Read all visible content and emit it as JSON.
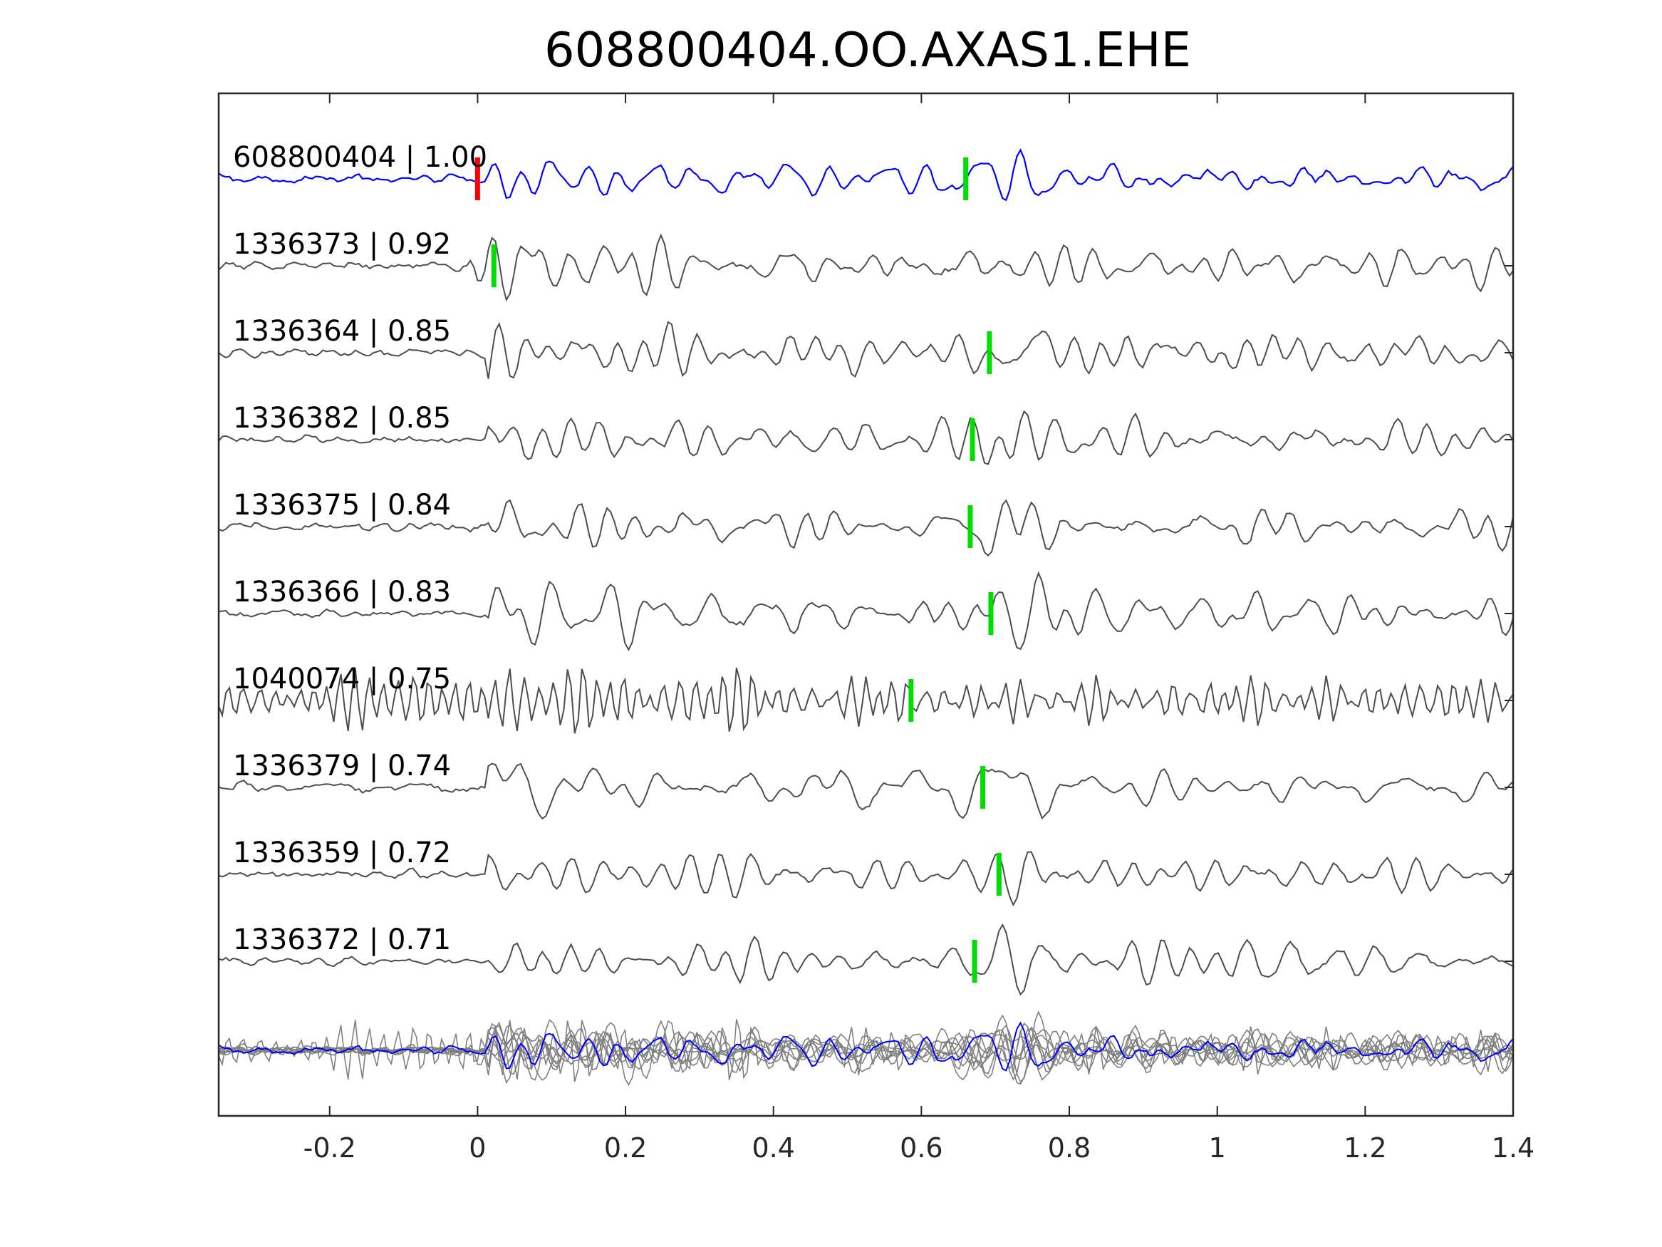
{
  "chart_data": {
    "type": "line",
    "title": "608800404.OO.AXAS1.EHE",
    "xlabel": "",
    "ylabel": "",
    "xlim": [
      -0.35,
      1.4
    ],
    "x_ticks": [
      -0.2,
      0,
      0.2,
      0.4,
      0.6,
      0.8,
      1,
      1.2,
      1.4
    ],
    "x_tick_labels": [
      "-0.2",
      "0",
      "0.2",
      "0.4",
      "0.6",
      "0.8",
      "1",
      "1.2",
      "1.4"
    ],
    "grid": false,
    "legend": "none",
    "colors": {
      "template": "#0000ff",
      "matches": "#4d4d4d",
      "stack": "#808080",
      "origin_pick": "#ff0000",
      "arrival_pick": "#00dd00",
      "axes": "#262626"
    },
    "traces": [
      {
        "label": "608800404 | 1.00",
        "id": "608800404",
        "cc": 1.0,
        "template": true,
        "origin_pick": 0.0,
        "pick": 0.66
      },
      {
        "label": "1336373 | 0.92",
        "id": "1336373",
        "cc": 0.92,
        "pick": 0.022
      },
      {
        "label": "1336364 | 0.85",
        "id": "1336364",
        "cc": 0.85,
        "pick": 0.692
      },
      {
        "label": "1336382 | 0.85",
        "id": "1336382",
        "cc": 0.85,
        "pick": 0.669
      },
      {
        "label": "1336375 | 0.84",
        "id": "1336375",
        "cc": 0.84,
        "pick": 0.666
      },
      {
        "label": "1336366 | 0.83",
        "id": "1336366",
        "cc": 0.83,
        "pick": 0.694
      },
      {
        "label": "1040074 | 0.75",
        "id": "1040074",
        "cc": 0.75,
        "pick": 0.586
      },
      {
        "label": "1336379 | 0.74",
        "id": "1336379",
        "cc": 0.74,
        "pick": 0.683
      },
      {
        "label": "1336359 | 0.72",
        "id": "1336359",
        "cc": 0.72,
        "pick": 0.705
      },
      {
        "label": "1336372 | 0.71",
        "id": "1336372",
        "cc": 0.71,
        "pick": 0.672
      }
    ]
  }
}
